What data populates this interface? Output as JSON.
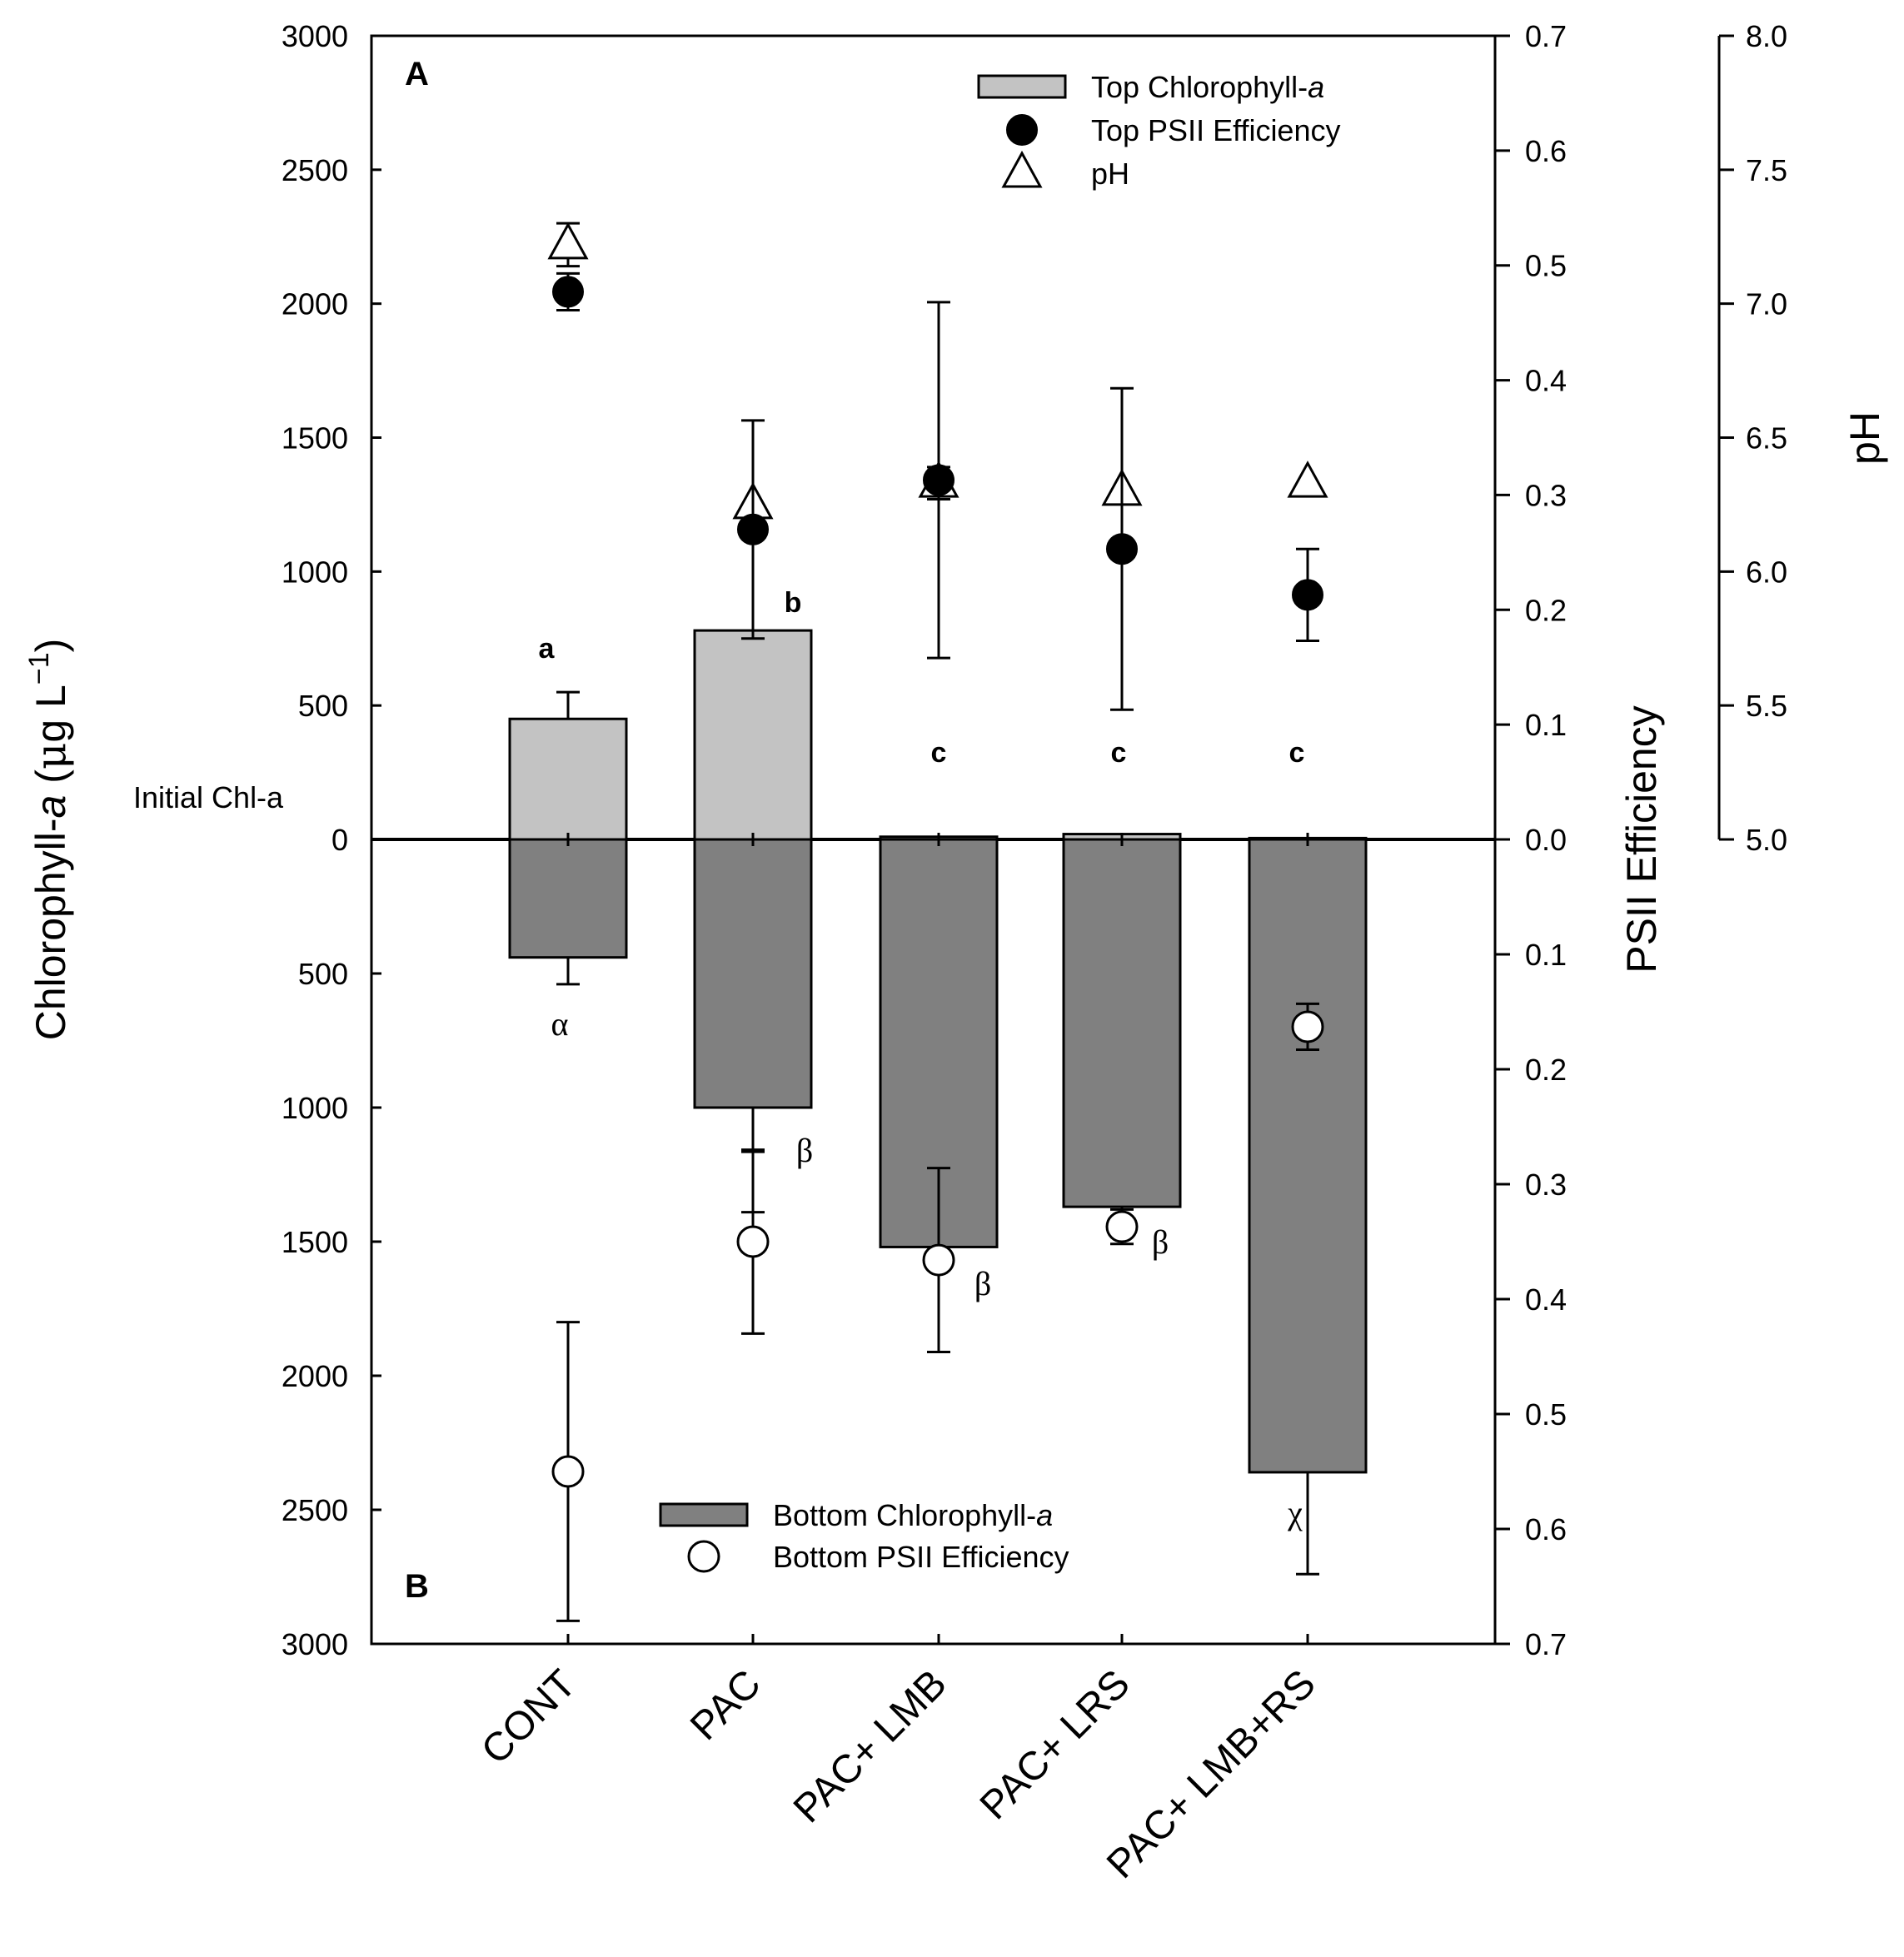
{
  "chart_data": {
    "type": "bar",
    "categories": [
      "CONT",
      "PAC",
      "PAC+ LMB",
      "PAC+ LRS",
      "PAC+ LMB+RS"
    ],
    "left_axis": {
      "title_parts": [
        "Chlorophyll-",
        "a",
        " (",
        "μ",
        "g L",
        "−1",
        ")"
      ],
      "top_range": [
        0,
        3000
      ],
      "bottom_range": [
        0,
        3000
      ],
      "ticks_top": [
        "3000",
        "2500",
        "2000",
        "1500",
        "1000",
        "500",
        "0"
      ],
      "ticks_bottom": [
        "500",
        "1000",
        "1500",
        "2000",
        "2500",
        "3000"
      ],
      "zero_note": "Initial Chl-a"
    },
    "right_axis_psii": {
      "title": "PSII Efficiency",
      "top_range": [
        0,
        0.7
      ],
      "bottom_range": [
        0,
        0.7
      ],
      "ticks_top": [
        "0.7",
        "0.6",
        "0.5",
        "0.4",
        "0.3",
        "0.2",
        "0.1",
        "0.0"
      ],
      "ticks_bottom": [
        "0.0",
        "0.1",
        "0.2",
        "0.3",
        "0.4",
        "0.5",
        "0.6",
        "0.7"
      ]
    },
    "right_axis_ph": {
      "title": "pH",
      "range": [
        5.0,
        8.0
      ],
      "ticks": [
        "8.0",
        "7.5",
        "7.0",
        "6.5",
        "6.0",
        "5.5",
        "5.0"
      ]
    },
    "series": [
      {
        "name": "Top Chlorophyll-a",
        "kind": "bar",
        "panel": "top",
        "axis": "chl",
        "color": "#c3c3c3",
        "values": [
          450,
          780,
          10,
          20,
          5
        ],
        "errors": [
          100,
          0,
          0,
          0,
          0
        ]
      },
      {
        "name": "Bottom Chlorophyll-a",
        "kind": "bar",
        "panel": "bottom",
        "axis": "chl",
        "color": "#808080",
        "values": [
          440,
          1000,
          1520,
          1370,
          2360
        ],
        "errors": [
          100,
          0,
          0,
          60,
          380
        ]
      },
      {
        "name": "Top PSII Efficiency",
        "kind": "point",
        "panel": "top",
        "axis": "psii",
        "marker": "filled-circle",
        "values": [
          0.477,
          0.27,
          0.313,
          0.253,
          0.213
        ],
        "errors": [
          0.016,
          0.095,
          0.155,
          0.14,
          0.04
        ]
      },
      {
        "name": "Bottom PSII Efficiency",
        "kind": "point",
        "panel": "bottom",
        "axis": "psii",
        "marker": "open-circle",
        "values": [
          0.55,
          0.35,
          0.366,
          0.337,
          0.163
        ],
        "errors": [
          0.13,
          0.08,
          0.08,
          0.015,
          0.02
        ]
      },
      {
        "name": "pH",
        "kind": "point",
        "panel": "top",
        "axis": "ph",
        "marker": "open-triangle",
        "values": [
          7.22,
          6.25,
          6.33,
          6.3,
          6.33
        ],
        "errors": [
          0.08,
          0,
          0.06,
          0,
          0
        ]
      }
    ],
    "extra_whiskers": [
      {
        "category": 1,
        "panel": "bottom",
        "axis": "chl",
        "low": 1000,
        "high": 1390
      }
    ],
    "top_letters": [
      "a",
      "b",
      "c",
      "c",
      "c"
    ],
    "bottom_letters": [
      "α",
      "β",
      "β",
      "β",
      "χ"
    ],
    "legend_top": [
      {
        "label_plain": "Top Chlorophyll-",
        "label_italic": "a",
        "marker": "bar-light"
      },
      {
        "label_plain": "Top PSII Efficiency",
        "label_italic": "",
        "marker": "filled-circle"
      },
      {
        "label_plain": "pH",
        "label_italic": "",
        "marker": "open-triangle"
      }
    ],
    "legend_bottom": [
      {
        "label_plain": "Bottom Chlorophyll-",
        "label_italic": "a",
        "marker": "bar-dark"
      },
      {
        "label_plain": "Bottom PSII Efficiency",
        "label_italic": "",
        "marker": "open-circle"
      }
    ],
    "panel_labels": {
      "top": "A",
      "bottom": "B"
    }
  }
}
